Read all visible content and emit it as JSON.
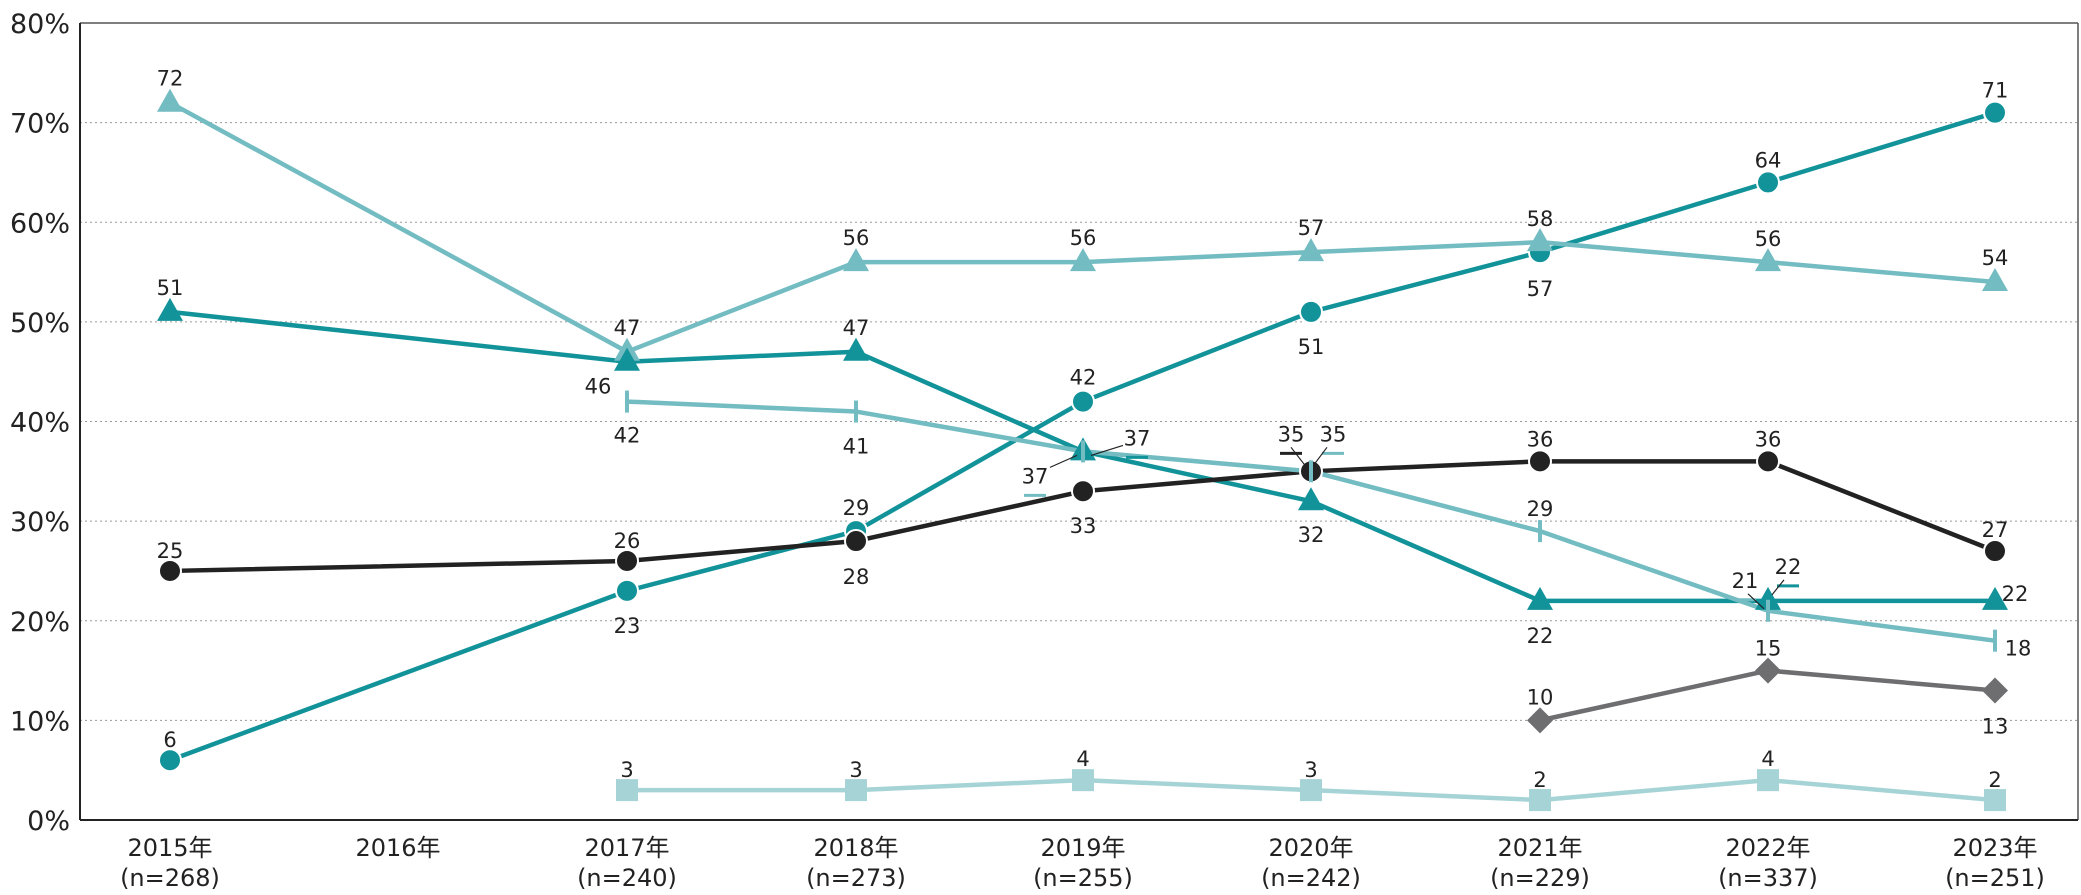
{
  "chart_data": {
    "type": "line",
    "title": "",
    "xlabel": "",
    "ylabel": "",
    "ylim": [
      0,
      80
    ],
    "y_ticks": [
      "0%",
      "10%",
      "20%",
      "30%",
      "40%",
      "50%",
      "60%",
      "70%",
      "80%"
    ],
    "grid": "horizontal dotted",
    "categories": [
      "2015年",
      "2016年",
      "2017年",
      "2018年",
      "2019年",
      "2020年",
      "2021年",
      "2022年",
      "2023年"
    ],
    "category_notes": [
      "(n=268)",
      "",
      "(n=240)",
      "(n=273)",
      "(n=255)",
      "(n=242)",
      "(n=229)",
      "(n=337)",
      "(n=251)"
    ],
    "series": [
      {
        "key": "teal-circle",
        "color": "#12939a",
        "marker": "circle",
        "values": [
          6,
          null,
          23,
          29,
          42,
          51,
          57,
          64,
          71
        ],
        "labels": [
          "6",
          "",
          "23",
          "29",
          "42",
          "51",
          "57",
          "64",
          "71"
        ]
      },
      {
        "key": "lightteal-triangle",
        "color": "#72bcc2",
        "marker": "triangle",
        "values": [
          72,
          null,
          47,
          56,
          56,
          57,
          58,
          56,
          54
        ],
        "labels": [
          "72",
          "",
          "47",
          "56",
          "56",
          "57",
          "58",
          "56",
          "54"
        ]
      },
      {
        "key": "teal-triangle",
        "color": "#12939a",
        "marker": "triangle",
        "values": [
          51,
          null,
          46,
          47,
          37,
          32,
          22,
          22,
          22
        ],
        "labels": [
          "51",
          "",
          "46",
          "47",
          "37",
          "32",
          "22",
          "22",
          "22"
        ]
      },
      {
        "key": "black-circle",
        "color": "#222222",
        "marker": "circle",
        "values": [
          25,
          null,
          26,
          28,
          33,
          35,
          36,
          36,
          27
        ],
        "labels": [
          "25",
          "",
          "26",
          "28",
          "33",
          "35",
          "36",
          "36",
          "27"
        ]
      },
      {
        "key": "lightteal-tick",
        "color": "#72bcc2",
        "marker": "tick",
        "values": [
          null,
          null,
          42,
          41,
          37,
          35,
          29,
          21,
          18
        ],
        "labels": [
          "",
          "",
          "42",
          "41",
          "37",
          "35",
          "29",
          "21",
          "18"
        ]
      },
      {
        "key": "gray-diamond",
        "color": "#6e6e70",
        "marker": "diamond",
        "values": [
          null,
          null,
          null,
          null,
          null,
          null,
          10,
          15,
          13
        ],
        "labels": [
          "",
          "",
          "",
          "",
          "",
          "",
          "10",
          "15",
          "13"
        ]
      },
      {
        "key": "palecyan-square",
        "color": "#a6d4d6",
        "marker": "square",
        "values": [
          null,
          null,
          3,
          3,
          4,
          3,
          2,
          4,
          2
        ],
        "labels": [
          "",
          "",
          "3",
          "3",
          "4",
          "3",
          "2",
          "4",
          "2"
        ]
      }
    ]
  }
}
